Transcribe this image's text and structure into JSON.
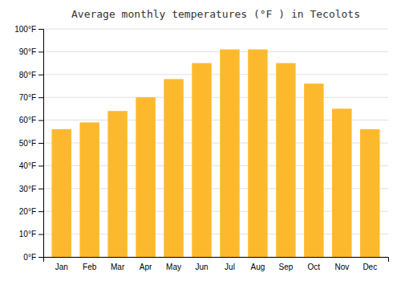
{
  "chart_data": {
    "type": "bar",
    "title": "Average monthly temperatures (°F ) in Tecolots",
    "categories": [
      "Jan",
      "Feb",
      "Mar",
      "Apr",
      "May",
      "Jun",
      "Jul",
      "Aug",
      "Sep",
      "Oct",
      "Nov",
      "Dec"
    ],
    "values": [
      56,
      59,
      64,
      70,
      78,
      85,
      91,
      91,
      85,
      76,
      65,
      56
    ],
    "color": "#FDB92E",
    "ylim": [
      0,
      100
    ],
    "yticks": [
      {
        "value": 0,
        "label": "0°F"
      },
      {
        "value": 10,
        "label": "10°F"
      },
      {
        "value": 20,
        "label": "20°F"
      },
      {
        "value": 30,
        "label": "30°F"
      },
      {
        "value": 40,
        "label": "40°F"
      },
      {
        "value": 50,
        "label": "50°F"
      },
      {
        "value": 60,
        "label": "60°F"
      },
      {
        "value": 70,
        "label": "70°F"
      },
      {
        "value": 80,
        "label": "80°F"
      },
      {
        "value": 90,
        "label": "90°F"
      },
      {
        "value": 100,
        "label": "100°F"
      }
    ],
    "grid": true
  }
}
